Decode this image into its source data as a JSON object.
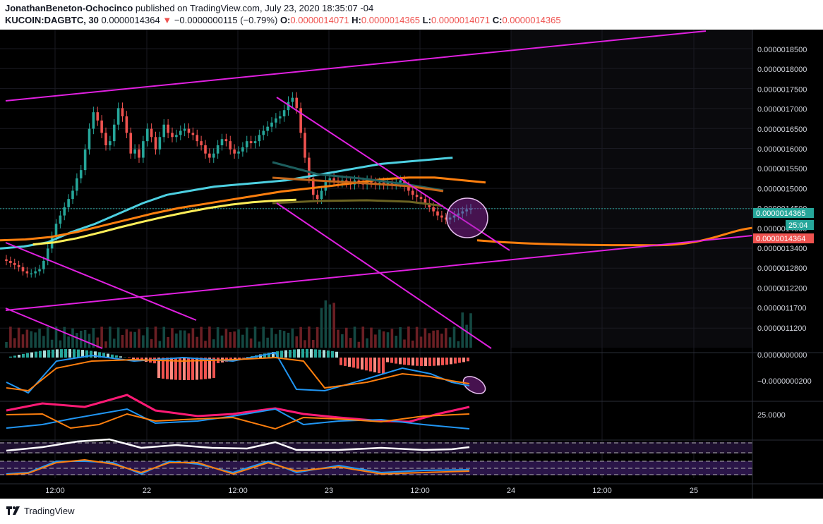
{
  "header": {
    "publisher": "JonathanBeneton-Ochocinco",
    "published_text": " published on TradingView.com, July 23, 2020 18:35:07 -04",
    "symbol": "KUCOIN:DAGBTC, 30",
    "last_price": "0.0000014364",
    "change_arrow": "▼",
    "change": "−0.0000000115 (−0.79%)",
    "open_label": "O:",
    "open": "0.0000014071",
    "high_label": "H:",
    "high": "0.0000014365",
    "low_label": "L:",
    "low": "0.0000014071",
    "close_label": "C:",
    "close": "0.0000014365"
  },
  "footer": {
    "brand": "TradingView"
  },
  "colors": {
    "background": "#000000",
    "up_candle": "#26a69a",
    "down_candle": "#ef5350",
    "ema_fast": "#4dd0e1",
    "ema_mid": "#ff7f0e",
    "ema_slow": "#ffee58",
    "trendlines": "#e020e0",
    "rsi_pink": "#ff1a75",
    "macd_blue": "#2196f3",
    "axis_text": "#d1d4dc"
  },
  "axis": {
    "price_ticks": [
      "0.0000018500",
      "0.0000018000",
      "0.0000017500",
      "0.0000017000",
      "0.0000016500",
      "0.0000016000",
      "0.0000015500",
      "0.0000015000",
      "0.0000014500",
      "0.0000014000",
      "0.0000013400",
      "0.0000012800",
      "0.0000012200",
      "0.0000011700",
      "0.0000011200"
    ],
    "macd_ticks": [
      "0.0000000000",
      "−0.0000000200"
    ],
    "dmi_ticks": [
      "25.0000"
    ],
    "time_labels": [
      "12:00",
      "22",
      "12:00",
      "23",
      "12:00",
      "24",
      "12:00",
      "25"
    ]
  },
  "price_tags": {
    "last": "0.0000014365",
    "countdown": "25:04",
    "prev": "0.0000014364"
  },
  "chart_data": {
    "type": "candlestick",
    "title": "KUCOIN:DAGBTC, 30",
    "interval": "30",
    "ylim": [
      1.1e-06,
      1.87e-06
    ],
    "y_scale": "linear",
    "x_ticks": [
      "12:00",
      "22",
      "12:00",
      "23",
      "12:00",
      "24",
      "12:00",
      "25"
    ],
    "grid": true,
    "last_price": 1.4365e-06,
    "candles_close": [
      1.31e-06,
      1.305e-06,
      1.3e-06,
      1.295e-06,
      1.285e-06,
      1.28e-06,
      1.28e-06,
      1.285e-06,
      1.29e-06,
      1.31e-06,
      1.34e-06,
      1.37e-06,
      1.4e-06,
      1.42e-06,
      1.44e-06,
      1.46e-06,
      1.48e-06,
      1.51e-06,
      1.53e-06,
      1.58e-06,
      1.63e-06,
      1.67e-06,
      1.65e-06,
      1.62e-06,
      1.59e-06,
      1.6e-06,
      1.64e-06,
      1.68e-06,
      1.66e-06,
      1.62e-06,
      1.57e-06,
      1.58e-06,
      1.56e-06,
      1.6e-06,
      1.63e-06,
      1.61e-06,
      1.58e-06,
      1.61e-06,
      1.64e-06,
      1.62e-06,
      1.61e-06,
      1.615e-06,
      1.625e-06,
      1.63e-06,
      1.62e-06,
      1.615e-06,
      1.6e-06,
      1.59e-06,
      1.57e-06,
      1.56e-06,
      1.57e-06,
      1.59e-06,
      1.605e-06,
      1.6e-06,
      1.58e-06,
      1.57e-06,
      1.575e-06,
      1.585e-06,
      1.6e-06,
      1.595e-06,
      1.6e-06,
      1.615e-06,
      1.625e-06,
      1.635e-06,
      1.645e-06,
      1.655e-06,
      1.66e-06,
      1.675e-06,
      1.695e-06,
      1.705e-06,
      1.68e-06,
      1.62e-06,
      1.56e-06,
      1.51e-06,
      1.47e-06,
      1.46e-06,
      1.48e-06,
      1.505e-06,
      1.51e-06,
      1.505e-06,
      1.5e-06,
      1.505e-06,
      1.5e-06,
      1.495e-06,
      1.505e-06,
      1.5e-06,
      1.495e-06,
      1.505e-06,
      1.5e-06,
      1.495e-06,
      1.5e-06,
      1.495e-06,
      1.5e-06,
      1.495e-06,
      1.5e-06,
      1.505e-06,
      1.49e-06,
      1.48e-06,
      1.47e-06,
      1.465e-06,
      1.46e-06,
      1.45e-06,
      1.44e-06,
      1.43e-06,
      1.42e-06,
      1.415e-06,
      1.41e-06,
      1.415e-06,
      1.42e-06,
      1.425e-06,
      1.43e-06,
      1.435e-06,
      1.4365e-06
    ],
    "series": [
      {
        "name": "",
        "color": "#4dd0e1",
        "role": "ema_fast",
        "x_start": 0.0,
        "x_end": 0.55,
        "values": [
          1.34e-06,
          1.345e-06,
          1.355e-06,
          1.38e-06,
          1.4e-06,
          1.425e-06,
          1.45e-06,
          1.47e-06,
          1.48e-06,
          1.49e-06,
          1.495e-06,
          1.5e-06,
          1.505e-06,
          1.515e-06,
          1.525e-06,
          1.535e-06,
          1.545e-06,
          1.55e-06,
          1.555e-06,
          1.56e-06
        ]
      },
      {
        "name": "",
        "color": "#ff7f0e",
        "role": "ema_mid",
        "x_start": 0.0,
        "x_end": 0.59,
        "values": [
          1.36e-06,
          1.362e-06,
          1.368e-06,
          1.38e-06,
          1.395e-06,
          1.41e-06,
          1.425e-06,
          1.438e-06,
          1.448e-06,
          1.458e-06,
          1.468e-06,
          1.478e-06,
          1.485e-06,
          1.492e-06,
          1.5e-06,
          1.508e-06,
          1.512e-06,
          1.512e-06,
          1.506e-06,
          1.5e-06
        ]
      },
      {
        "name": "",
        "color": "#ffee58",
        "role": "ema_slow",
        "x_start": 0.04,
        "x_end": 0.36,
        "values": [
          1.35e-06,
          1.355e-06,
          1.365e-06,
          1.378e-06,
          1.392e-06,
          1.405e-06,
          1.417e-06,
          1.428e-06,
          1.438e-06,
          1.446e-06,
          1.452e-06,
          1.456e-06,
          1.458e-06
        ]
      }
    ],
    "projection": {
      "color": "#ff7f0e",
      "from_price": 1.36e-06,
      "min_price": 1.348e-06,
      "to_price": 1.39e-06
    }
  }
}
